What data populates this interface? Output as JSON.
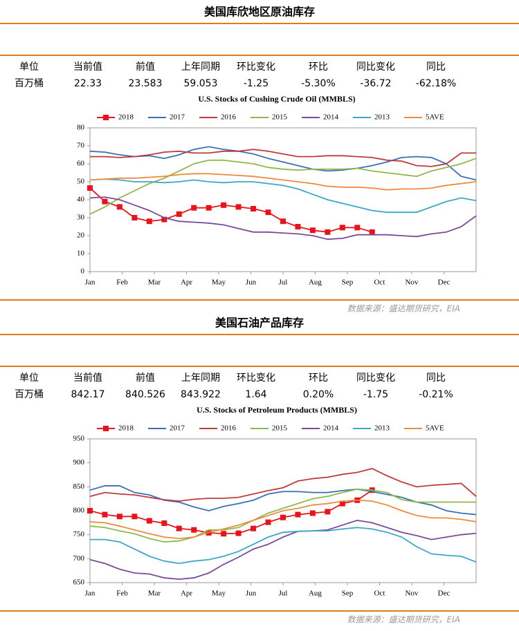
{
  "sections": [
    {
      "title": "美国库欣地区原油库存",
      "table": {
        "header": [
          "单位",
          "当前值",
          "前值",
          "上年同期",
          "环比变化",
          "环比",
          "同比变化",
          "同比"
        ],
        "row": [
          "百万桶",
          "22.33",
          "23.583",
          "59.053",
          "-1.25",
          "-5.30%",
          "-36.72",
          "-62.18%"
        ]
      },
      "source": "数据来源：盛达期货研究，EIA"
    },
    {
      "title": "美国石油产品库存",
      "table": {
        "header": [
          "单位",
          "当前值",
          "前值",
          "上年同期",
          "环比变化",
          "环比",
          "同比变化",
          "同比"
        ],
        "row": [
          "百万桶",
          "842.17",
          "840.526",
          "843.922",
          "1.64",
          "0.20%",
          "-1.75",
          "-0.21%"
        ]
      },
      "source": "数据来源：盛达期货研究，EIA"
    }
  ],
  "chart_data": [
    {
      "type": "line",
      "title": "U.S.  Stocks of Cushing  Crude Oil (MMBLS)",
      "legend": "top",
      "x": [
        0,
        2,
        4,
        6,
        8,
        10,
        12,
        14,
        16,
        18,
        20,
        22,
        24,
        26,
        28,
        30,
        32,
        34,
        36,
        38,
        40,
        42,
        44,
        46,
        48,
        50,
        52
      ],
      "xlim": [
        0,
        52
      ],
      "xticks": [
        {
          "value": 0,
          "label": "Jan"
        },
        {
          "value": 4.33,
          "label": "Feb"
        },
        {
          "value": 8.67,
          "label": "Mar"
        },
        {
          "value": 13,
          "label": "Apr"
        },
        {
          "value": 17.33,
          "label": "May"
        },
        {
          "value": 21.67,
          "label": "Jun"
        },
        {
          "value": 26,
          "label": "Jul"
        },
        {
          "value": 30.33,
          "label": "Aug"
        },
        {
          "value": 34.67,
          "label": "Sep"
        },
        {
          "value": 39,
          "label": "Oct"
        },
        {
          "value": 43.33,
          "label": "Nov"
        },
        {
          "value": 47.67,
          "label": "Dec"
        }
      ],
      "ylim": [
        0,
        80
      ],
      "yticks": [
        0,
        10,
        20,
        30,
        40,
        50,
        60,
        70,
        80
      ],
      "series": [
        {
          "name": "2018",
          "color": "#e8141b",
          "marker": "square",
          "values": [
            46.5,
            39,
            36,
            30,
            28,
            29,
            32,
            35.5,
            35.5,
            37,
            36,
            35,
            33,
            28,
            25,
            23,
            22,
            24.5,
            24.5,
            22,
            null,
            null,
            null,
            null,
            null,
            null,
            null
          ]
        },
        {
          "name": "2017",
          "color": "#3a6fb5",
          "values": [
            67,
            66.5,
            65,
            64,
            64.5,
            63,
            65,
            68,
            69.5,
            68,
            67,
            65.5,
            63,
            61,
            59,
            57,
            56,
            56.5,
            57.5,
            59,
            61,
            63.5,
            64,
            63.5,
            60,
            53,
            51
          ]
        },
        {
          "name": "2016",
          "color": "#bf3a3a",
          "values": [
            64,
            64,
            63.5,
            64,
            65,
            66.5,
            67,
            66,
            66,
            67,
            67,
            68,
            67,
            65.5,
            64,
            64,
            64.5,
            64.5,
            64,
            63.5,
            62,
            61.5,
            59,
            58.5,
            60,
            66,
            66
          ]
        },
        {
          "name": "2015",
          "color": "#8fb84a",
          "values": [
            32,
            36,
            41,
            45,
            49,
            52,
            56,
            60,
            62,
            62,
            61,
            60,
            58,
            57,
            56.5,
            57,
            57,
            57,
            57.5,
            56,
            55,
            54,
            53,
            56,
            58,
            60,
            63
          ]
        },
        {
          "name": "2014",
          "color": "#7a4a9a",
          "values": [
            41,
            41.5,
            40,
            37,
            34,
            30,
            28,
            27.5,
            27,
            26,
            24,
            22,
            22,
            21.5,
            21,
            20,
            18,
            18.5,
            20.5,
            20.5,
            20.5,
            20,
            19.5,
            21,
            22,
            25,
            31
          ]
        },
        {
          "name": "2013",
          "color": "#3aa8c8",
          "values": [
            51,
            51.5,
            51,
            50,
            50,
            49.5,
            50,
            51,
            50,
            49.5,
            50,
            50,
            49,
            48,
            46,
            43,
            40,
            38,
            36,
            34,
            33,
            33,
            33,
            36,
            39,
            41,
            39.5
          ]
        },
        {
          "name": "5AVE",
          "color": "#f08a3a",
          "values": [
            51,
            51.5,
            52,
            52,
            52.5,
            53,
            54,
            54.5,
            54.5,
            54,
            53.5,
            53,
            52,
            51,
            50,
            49,
            47.5,
            47,
            47,
            46.5,
            45.5,
            46,
            46,
            46.5,
            48,
            49,
            50
          ]
        }
      ]
    },
    {
      "type": "line",
      "title": "U.S.  Stocks of Petroleum Products (MMBLS)",
      "legend": "top",
      "x": [
        0,
        2,
        4,
        6,
        8,
        10,
        12,
        14,
        16,
        18,
        20,
        22,
        24,
        26,
        28,
        30,
        32,
        34,
        36,
        38,
        40,
        42,
        44,
        46,
        48,
        50,
        52
      ],
      "xlim": [
        0,
        52
      ],
      "xticks": [
        {
          "value": 0,
          "label": "Jan"
        },
        {
          "value": 4.33,
          "label": "Feb"
        },
        {
          "value": 8.67,
          "label": "Mar"
        },
        {
          "value": 13,
          "label": "Apr"
        },
        {
          "value": 17.33,
          "label": "May"
        },
        {
          "value": 21.67,
          "label": "Jun"
        },
        {
          "value": 26,
          "label": "Jul"
        },
        {
          "value": 30.33,
          "label": "Aug"
        },
        {
          "value": 34.67,
          "label": "Sep"
        },
        {
          "value": 39,
          "label": "Oct"
        },
        {
          "value": 43.33,
          "label": "Nov"
        },
        {
          "value": 47.67,
          "label": "Dec"
        }
      ],
      "ylim": [
        650,
        950
      ],
      "yticks": [
        650,
        700,
        750,
        800,
        850,
        900,
        950
      ],
      "series": [
        {
          "name": "2018",
          "color": "#e8141b",
          "marker": "square",
          "values": [
            800,
            792,
            788,
            788,
            779,
            774,
            763,
            760,
            754,
            752,
            753,
            763,
            776,
            786,
            792,
            795,
            798,
            815,
            822,
            843,
            null,
            null,
            null,
            null,
            null,
            null,
            null
          ]
        },
        {
          "name": "2017",
          "color": "#3a6fb5",
          "values": [
            843,
            852,
            852,
            838,
            833,
            822,
            818,
            808,
            800,
            809,
            815,
            822,
            835,
            840,
            840,
            838,
            838,
            842,
            845,
            840,
            834,
            828,
            818,
            812,
            800,
            795,
            792
          ]
        },
        {
          "name": "2016",
          "color": "#bf3a3a",
          "values": [
            830,
            838,
            835,
            833,
            828,
            823,
            820,
            824,
            826,
            826,
            828,
            835,
            842,
            848,
            862,
            867,
            870,
            876,
            880,
            888,
            873,
            860,
            850,
            853,
            855,
            857,
            830
          ]
        },
        {
          "name": "2015",
          "color": "#8fb84a",
          "values": [
            768,
            765,
            758,
            752,
            742,
            735,
            737,
            745,
            760,
            760,
            765,
            780,
            795,
            805,
            815,
            825,
            830,
            838,
            845,
            843,
            838,
            823,
            818,
            818,
            818,
            818,
            818
          ]
        },
        {
          "name": "2014",
          "color": "#7a4a9a",
          "values": [
            698,
            690,
            678,
            670,
            668,
            660,
            657,
            660,
            670,
            688,
            703,
            720,
            730,
            745,
            757,
            758,
            760,
            770,
            780,
            775,
            765,
            755,
            748,
            740,
            745,
            750,
            753
          ]
        },
        {
          "name": "2013",
          "color": "#3aa8c8",
          "values": [
            740,
            740,
            735,
            720,
            705,
            695,
            690,
            695,
            698,
            705,
            715,
            730,
            745,
            755,
            757,
            758,
            758,
            762,
            765,
            762,
            755,
            745,
            725,
            710,
            707,
            705,
            693
          ]
        },
        {
          "name": "5AVE",
          "color": "#f08a3a",
          "values": [
            777,
            775,
            768,
            760,
            752,
            745,
            742,
            745,
            755,
            762,
            770,
            780,
            790,
            800,
            805,
            812,
            815,
            820,
            822,
            820,
            812,
            800,
            790,
            785,
            785,
            782,
            777
          ]
        }
      ]
    }
  ]
}
